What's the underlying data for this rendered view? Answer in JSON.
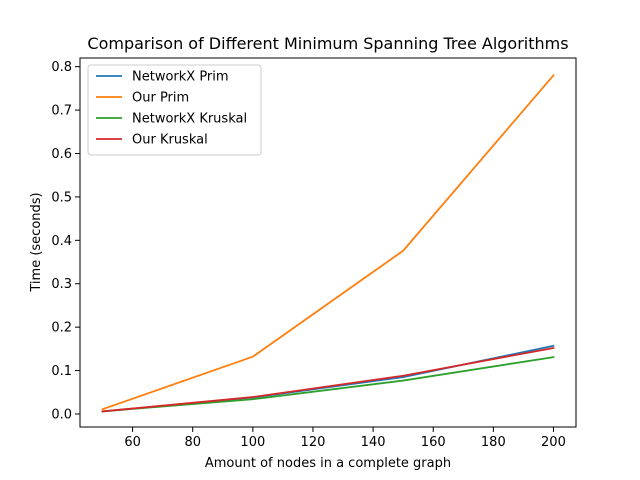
{
  "chart_data": {
    "type": "line",
    "title": "Comparison of Different Minimum Spanning Tree Algorithms",
    "xlabel": "Amount of nodes in a complete graph",
    "ylabel": "Time (seconds)",
    "x": [
      50,
      100,
      150,
      200
    ],
    "xlim": [
      42.5,
      207.5
    ],
    "ylim": [
      -0.03,
      0.82
    ],
    "xticks": [
      60,
      80,
      100,
      120,
      140,
      160,
      180,
      200
    ],
    "yticks": [
      0.0,
      0.1,
      0.2,
      0.3,
      0.4,
      0.5,
      0.6,
      0.7,
      0.8
    ],
    "xtick_labels": [
      "60",
      "80",
      "100",
      "120",
      "140",
      "160",
      "180",
      "200"
    ],
    "ytick_labels": [
      "0.0",
      "0.1",
      "0.2",
      "0.3",
      "0.4",
      "0.5",
      "0.6",
      "0.7",
      "0.8"
    ],
    "grid": false,
    "legend_position": "top-left",
    "series": [
      {
        "name": "NetworkX Prim",
        "color": "#1f77b4",
        "values": [
          0.006,
          0.038,
          0.085,
          0.157
        ]
      },
      {
        "name": "Our Prim",
        "color": "#ff7f0e",
        "values": [
          0.011,
          0.132,
          0.376,
          0.78
        ]
      },
      {
        "name": "NetworkX Kruskal",
        "color": "#2ca02c",
        "values": [
          0.006,
          0.034,
          0.077,
          0.131
        ]
      },
      {
        "name": "Our Kruskal",
        "color": "#d62728",
        "values": [
          0.006,
          0.039,
          0.088,
          0.152
        ]
      }
    ]
  }
}
